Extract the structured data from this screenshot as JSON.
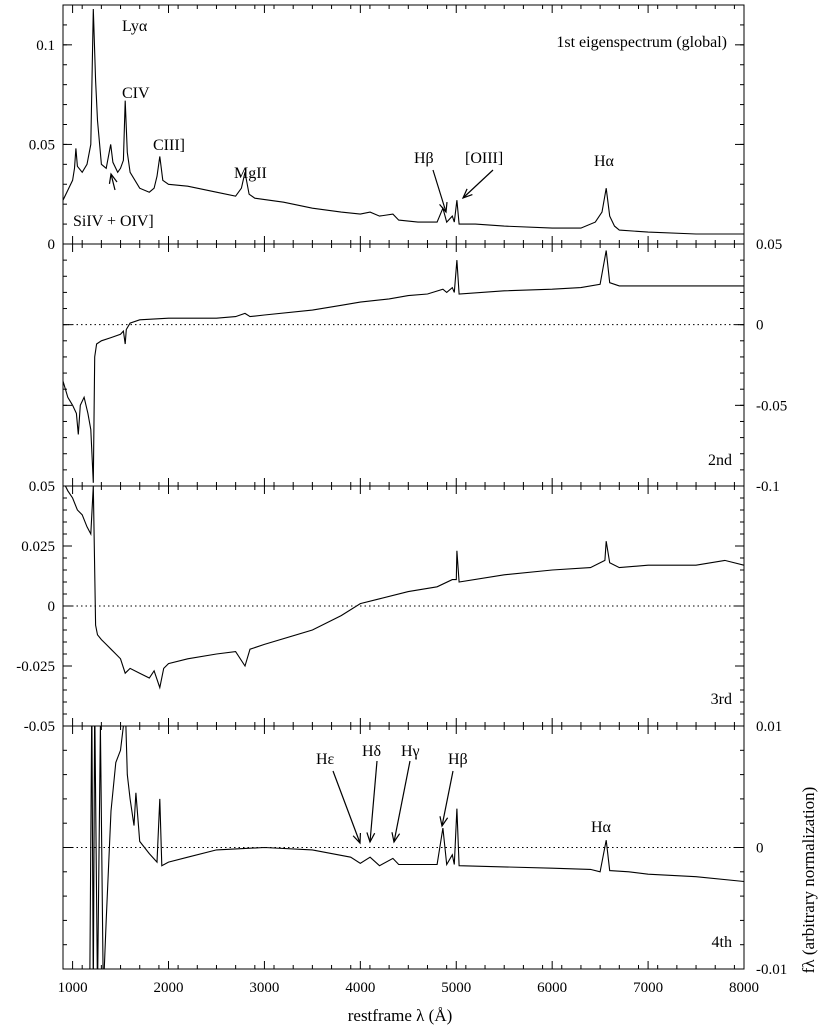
{
  "chart_data": {
    "type": "line",
    "xlabel": "restframe λ (Å)",
    "ylabel": "fλ (arbitrary normalization)",
    "xlim": [
      900,
      8000
    ],
    "x_ticks": [
      1000,
      2000,
      3000,
      4000,
      5000,
      6000,
      7000,
      8000
    ],
    "x_tick_labels": [
      "1000",
      "2000",
      "3000",
      "4000",
      "5000",
      "6000",
      "7000",
      "8000"
    ],
    "panels": [
      {
        "label": "1st eigenspectrum (global)",
        "ylim": [
          0,
          0.12
        ],
        "y_ticks": [
          0,
          0.05,
          0.1
        ],
        "y_tick_labels": [
          "0",
          "0.05",
          "0.1"
        ],
        "y_axis_side": "left",
        "zero_line": false,
        "series": [
          {
            "x": [
              900,
              950,
              1000,
              1020,
              1035,
              1050,
              1100,
              1150,
              1190,
              1216,
              1240,
              1260,
              1300,
              1350,
              1397,
              1420,
              1470,
              1500,
              1530,
              1549,
              1570,
              1600,
              1700,
              1800,
              1850,
              1880,
              1909,
              1940,
              2000,
              2200,
              2500,
              2700,
              2760,
              2798,
              2840,
              2900,
              3200,
              3500,
              3800,
              4000,
              4102,
              4200,
              4340,
              4400,
              4600,
              4800,
              4861,
              4900,
              4959,
              4980,
              5007,
              5030,
              5200,
              5500,
              6000,
              6300,
              6450,
              6520,
              6563,
              6600,
              6650,
              6700,
              7000,
              7500,
              8000
            ],
            "y": [
              0.022,
              0.027,
              0.032,
              0.038,
              0.048,
              0.039,
              0.036,
              0.04,
              0.05,
              0.118,
              0.082,
              0.062,
              0.04,
              0.038,
              0.05,
              0.041,
              0.036,
              0.038,
              0.042,
              0.072,
              0.046,
              0.036,
              0.028,
              0.026,
              0.028,
              0.034,
              0.044,
              0.032,
              0.03,
              0.029,
              0.026,
              0.024,
              0.028,
              0.036,
              0.025,
              0.023,
              0.021,
              0.018,
              0.016,
              0.015,
              0.016,
              0.014,
              0.015,
              0.012,
              0.011,
              0.011,
              0.018,
              0.011,
              0.014,
              0.011,
              0.022,
              0.01,
              0.01,
              0.009,
              0.008,
              0.008,
              0.011,
              0.016,
              0.028,
              0.014,
              0.009,
              0.007,
              0.006,
              0.005,
              0.005
            ]
          }
        ],
        "annotations": [
          {
            "text": "Lyα",
            "x": 1216,
            "y": 0.118
          },
          {
            "text": "CIV",
            "x": 1549,
            "y": 0.072
          },
          {
            "text": "CIII]",
            "x": 1909,
            "y": 0.044
          },
          {
            "text": "SiIV + OIV]",
            "x": 1400,
            "y": 0.036
          },
          {
            "text": "MgII",
            "x": 2798,
            "y": 0.036
          },
          {
            "text": "Hβ",
            "x": 4861,
            "y": 0.018
          },
          {
            "text": "[OIII]",
            "x": 5007,
            "y": 0.022
          },
          {
            "text": "Hα",
            "x": 6563,
            "y": 0.028
          }
        ]
      },
      {
        "label": "2nd",
        "ylim": [
          -0.1,
          0.05
        ],
        "y_ticks": [
          -0.1,
          -0.05,
          0,
          0.05
        ],
        "y_tick_labels": [
          "-0.1",
          "-0.05",
          "0",
          "0.05"
        ],
        "y_axis_side": "right",
        "zero_line": true,
        "series": [
          {
            "x": [
              900,
              950,
              1000,
              1040,
              1060,
              1080,
              1120,
              1160,
              1190,
              1216,
              1230,
              1250,
              1300,
              1400,
              1500,
              1530,
              1549,
              1560,
              1600,
              1700,
              2000,
              2500,
              2700,
              2798,
              2850,
              3000,
              3500,
              3800,
              4000,
              4300,
              4500,
              4700,
              4861,
              4900,
              4959,
              4980,
              5007,
              5030,
              5500,
              6000,
              6300,
              6500,
              6563,
              6600,
              6700,
              7000,
              7500,
              8000
            ],
            "y": [
              -0.035,
              -0.045,
              -0.05,
              -0.055,
              -0.068,
              -0.05,
              -0.045,
              -0.055,
              -0.065,
              -0.098,
              -0.02,
              -0.012,
              -0.01,
              -0.008,
              -0.006,
              -0.004,
              -0.012,
              -0.003,
              0.001,
              0.003,
              0.004,
              0.004,
              0.005,
              0.007,
              0.005,
              0.006,
              0.009,
              0.012,
              0.014,
              0.016,
              0.018,
              0.019,
              0.022,
              0.02,
              0.023,
              0.02,
              0.04,
              0.019,
              0.021,
              0.022,
              0.023,
              0.025,
              0.046,
              0.026,
              0.024,
              0.024,
              0.024,
              0.024
            ]
          }
        ],
        "annotations": []
      },
      {
        "label": "3rd",
        "ylim": [
          -0.05,
          0.05
        ],
        "y_ticks": [
          -0.05,
          -0.025,
          0,
          0.025,
          0.05
        ],
        "y_tick_labels": [
          "-0.05",
          "-0.025",
          "0",
          "0.025",
          "0.05"
        ],
        "y_axis_side": "left",
        "zero_line": true,
        "series": [
          {
            "x": [
              900,
              950,
              1000,
              1050,
              1100,
              1150,
              1190,
              1216,
              1240,
              1260,
              1300,
              1350,
              1400,
              1450,
              1500,
              1549,
              1600,
              1700,
              1800,
              1850,
              1909,
              1950,
              2000,
              2200,
              2500,
              2700,
              2798,
              2850,
              3000,
              3500,
              3800,
              4000,
              4200,
              4500,
              4800,
              4959,
              5000,
              5007,
              5030,
              5500,
              6000,
              6400,
              6550,
              6563,
              6600,
              6700,
              7000,
              7500,
              7800,
              8000
            ],
            "y": [
              0.052,
              0.048,
              0.045,
              0.04,
              0.038,
              0.033,
              0.03,
              0.05,
              -0.008,
              -0.012,
              -0.014,
              -0.016,
              -0.018,
              -0.02,
              -0.022,
              -0.028,
              -0.026,
              -0.028,
              -0.03,
              -0.027,
              -0.034,
              -0.026,
              -0.024,
              -0.022,
              -0.02,
              -0.019,
              -0.025,
              -0.018,
              -0.016,
              -0.01,
              -0.004,
              0.001,
              0.003,
              0.006,
              0.008,
              0.011,
              0.011,
              0.023,
              0.01,
              0.013,
              0.015,
              0.016,
              0.019,
              0.027,
              0.018,
              0.016,
              0.017,
              0.017,
              0.019,
              0.017
            ]
          }
        ],
        "annotations": []
      },
      {
        "label": "4th",
        "ylim": [
          -0.01,
          0.01
        ],
        "y_ticks": [
          -0.01,
          0,
          0.01
        ],
        "y_tick_labels": [
          "-0.01",
          "0",
          "0.01"
        ],
        "y_axis_side": "right",
        "zero_line": true,
        "series": [
          {
            "x": [
              900,
              1000,
              1100,
              1150,
              1180,
              1200,
              1216,
              1230,
              1260,
              1290,
              1320,
              1350,
              1400,
              1450,
              1500,
              1530,
              1549,
              1570,
              1600,
              1640,
              1660,
              1700,
              1800,
              1880,
              1909,
              1930,
              2000,
              2200,
              2500,
              3000,
              3500,
              3900,
              4000,
              4102,
              4200,
              4340,
              4400,
              4600,
              4800,
              4861,
              4900,
              4959,
              4980,
              5007,
              5030,
              5500,
              6000,
              6400,
              6500,
              6563,
              6600,
              6800,
              7000,
              7500,
              8000
            ],
            "y": [
              -0.012,
              -0.012,
              -0.012,
              -0.012,
              -0.01,
              0.012,
              -0.012,
              0.012,
              -0.012,
              0.01,
              -0.012,
              -0.006,
              0.003,
              0.007,
              0.008,
              0.01,
              0.012,
              0.006,
              0.004,
              0.0018,
              0.0045,
              0.0005,
              -0.0005,
              -0.0012,
              0.004,
              -0.0015,
              -0.0012,
              -0.0008,
              -0.0002,
              0.0,
              -0.0002,
              -0.0008,
              -0.0013,
              -0.0008,
              -0.0015,
              -0.0009,
              -0.0014,
              -0.0014,
              -0.0014,
              0.0016,
              -0.0014,
              -0.0006,
              -0.0014,
              0.0032,
              -0.0015,
              -0.0016,
              -0.0017,
              -0.0018,
              -0.002,
              0.0006,
              -0.0019,
              -0.002,
              -0.0022,
              -0.0024,
              -0.0028
            ]
          }
        ],
        "annotations": [
          {
            "text": "Hε",
            "x": 3970,
            "y": -0.0013
          },
          {
            "text": "Hδ",
            "x": 4102,
            "y": -0.0008
          },
          {
            "text": "Hγ",
            "x": 4340,
            "y": -0.0009
          },
          {
            "text": "Hβ",
            "x": 4861,
            "y": 0.0016
          },
          {
            "text": "Hα",
            "x": 6563,
            "y": 0.0006
          }
        ]
      }
    ]
  }
}
